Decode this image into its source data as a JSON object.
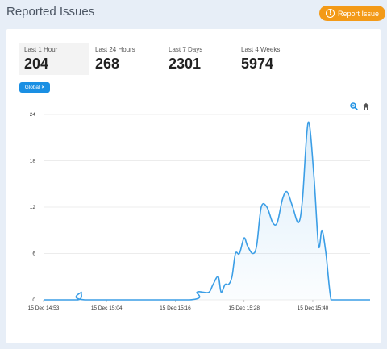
{
  "header": {
    "title": "Reported Issues"
  },
  "report_button": {
    "label": "Report Issue",
    "icon": "alert-circle-icon"
  },
  "stats": [
    {
      "label": "Last 1 Hour",
      "value": "204"
    },
    {
      "label": "Last 24 Hours",
      "value": "268"
    },
    {
      "label": "Last 7 Days",
      "value": "2301"
    },
    {
      "label": "Last 4 Weeks",
      "value": "5974"
    }
  ],
  "filter_chip": {
    "label": "Global",
    "remove": "×"
  },
  "toolbar": {
    "zoom_icon": "zoom-icon",
    "home_icon": "home-icon"
  },
  "colors": {
    "accent": "#1a8fe3",
    "report": "#f39a18",
    "line": "#3b9ee6"
  },
  "chart_data": {
    "type": "area",
    "y_ticks": [
      "0",
      "6",
      "12",
      "18",
      "24"
    ],
    "ylim": [
      0,
      24
    ],
    "x_ticks": [
      "15 Dec 14:53",
      "15 Dec 15:04",
      "15 Dec 15:16",
      "15 Dec 15:28",
      "15 Dec 15:40"
    ],
    "x_tick_positions_min": [
      0,
      11,
      23,
      35,
      47
    ],
    "x_range_min": [
      0,
      57
    ],
    "grid": true,
    "series": [
      {
        "x": [
          0,
          6.0,
          6.6,
          7.2,
          25.5,
          26.8,
          27.8,
          28.9,
          29.6,
          30.5,
          31.0,
          31.7,
          32.3,
          32.9,
          33.5,
          34.2,
          35.0,
          35.6,
          36.5,
          37.2,
          38.0,
          39.0,
          40.0,
          40.8,
          41.7,
          42.5,
          43.5,
          44.5,
          45.2,
          46.2,
          47.2,
          48.0,
          48.6,
          49.3,
          50.2,
          51.3,
          52.0,
          52.8,
          53.2,
          53.8,
          54.6,
          55.1,
          57.0
        ],
        "y": [
          0,
          0,
          1,
          0,
          0,
          1,
          1,
          1,
          2,
          3,
          1,
          2,
          2,
          3,
          6,
          6,
          8,
          7,
          6,
          7,
          12,
          12,
          10,
          10,
          13,
          14,
          12,
          10,
          13,
          23,
          16,
          7,
          9,
          6,
          0,
          0,
          0,
          0,
          0,
          0,
          0,
          0,
          0
        ]
      }
    ]
  }
}
